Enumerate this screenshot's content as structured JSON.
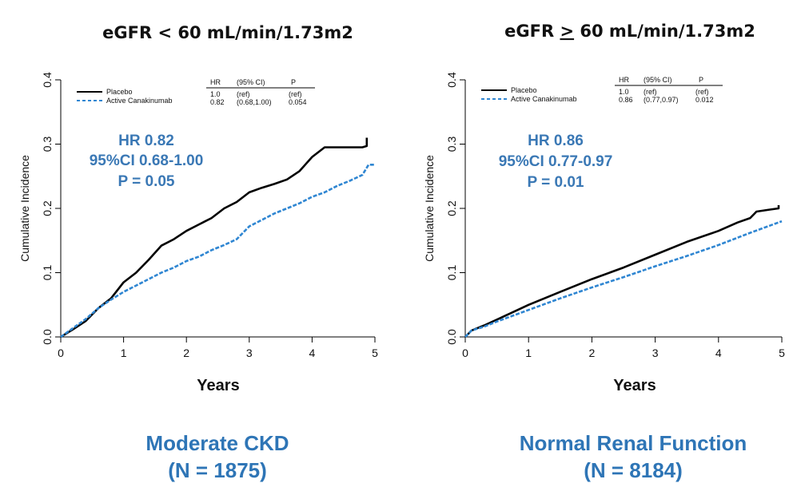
{
  "colors": {
    "placebo": "#000000",
    "active": "#2f86d2",
    "annotation": "#3a78b5",
    "caption": "#2e75b6"
  },
  "chart_data": [
    {
      "type": "line",
      "title_prefix": "eGFR ",
      "title_op": "<",
      "title_suffix": " 60 mL/min/1.73m2",
      "title_underline": false,
      "xlabel": "Years",
      "ylabel": "Cumulative Incidence",
      "xlim": [
        0,
        5
      ],
      "ylim": [
        0,
        0.4
      ],
      "xticks": [
        "0",
        "1",
        "2",
        "3",
        "4",
        "5"
      ],
      "yticks": [
        "0.0",
        "0.1",
        "0.2",
        "0.3",
        "0.4"
      ],
      "legend_position": "top-left",
      "series": [
        {
          "name": "Placebo",
          "style": "solid",
          "x": [
            0,
            0.2,
            0.4,
            0.6,
            0.8,
            1.0,
            1.2,
            1.4,
            1.6,
            1.8,
            2.0,
            2.2,
            2.4,
            2.6,
            2.8,
            3.0,
            3.2,
            3.4,
            3.6,
            3.8,
            4.0,
            4.2,
            4.5,
            4.8,
            4.87,
            4.87
          ],
          "y": [
            0,
            0.012,
            0.025,
            0.045,
            0.06,
            0.085,
            0.1,
            0.12,
            0.142,
            0.152,
            0.165,
            0.175,
            0.185,
            0.2,
            0.21,
            0.225,
            0.232,
            0.238,
            0.245,
            0.258,
            0.28,
            0.295,
            0.295,
            0.295,
            0.297,
            0.31
          ]
        },
        {
          "name": "Active Canakinumab",
          "style": "dashed",
          "x": [
            0,
            0.2,
            0.4,
            0.6,
            0.8,
            1.0,
            1.2,
            1.4,
            1.6,
            1.8,
            2.0,
            2.2,
            2.4,
            2.6,
            2.8,
            3.0,
            3.2,
            3.4,
            3.6,
            3.8,
            4.0,
            4.2,
            4.4,
            4.6,
            4.8,
            4.9,
            5.0
          ],
          "y": [
            0,
            0.014,
            0.028,
            0.045,
            0.058,
            0.07,
            0.08,
            0.09,
            0.1,
            0.108,
            0.118,
            0.125,
            0.135,
            0.143,
            0.152,
            0.172,
            0.182,
            0.192,
            0.2,
            0.208,
            0.218,
            0.225,
            0.235,
            0.243,
            0.252,
            0.268,
            0.268
          ]
        }
      ],
      "table": {
        "headers": [
          "HR",
          "(95% CI)",
          "P"
        ],
        "rows": [
          [
            "1.0",
            "(ref)",
            "(ref)"
          ],
          [
            "0.82",
            "(0.68,1.00)",
            "0.054"
          ]
        ]
      },
      "annotation": [
        "HR 0.82",
        "95%CI 0.68-1.00",
        "P = 0.05"
      ],
      "caption": [
        "Moderate CKD",
        "(N = 1875)"
      ]
    },
    {
      "type": "line",
      "title_prefix": "eGFR ",
      "title_op": ">",
      "title_suffix": " 60 mL/min/1.73m2",
      "title_underline": true,
      "xlabel": "Years",
      "ylabel": "Cumulative Incidence",
      "xlim": [
        0,
        5
      ],
      "ylim": [
        0,
        0.4
      ],
      "xticks": [
        "0",
        "1",
        "2",
        "3",
        "4",
        "5"
      ],
      "yticks": [
        "0.0",
        "0.1",
        "0.2",
        "0.3",
        "0.4"
      ],
      "legend_position": "top-left",
      "series": [
        {
          "name": "Placebo",
          "style": "solid",
          "x": [
            0,
            0.1,
            0.3,
            0.5,
            1.0,
            1.5,
            2.0,
            2.5,
            3.0,
            3.5,
            4.0,
            4.3,
            4.5,
            4.6,
            4.8,
            4.95,
            4.95
          ],
          "y": [
            0,
            0.01,
            0.018,
            0.027,
            0.05,
            0.07,
            0.09,
            0.108,
            0.128,
            0.148,
            0.165,
            0.178,
            0.185,
            0.195,
            0.198,
            0.2,
            0.205
          ]
        },
        {
          "name": "Active Canakinumab",
          "style": "dashed",
          "x": [
            0,
            0.1,
            0.3,
            0.5,
            1.0,
            1.5,
            2.0,
            2.5,
            3.0,
            3.5,
            4.0,
            4.5,
            5.0
          ],
          "y": [
            0,
            0.01,
            0.016,
            0.024,
            0.042,
            0.06,
            0.077,
            0.093,
            0.11,
            0.126,
            0.143,
            0.162,
            0.18
          ]
        }
      ],
      "table": {
        "headers": [
          "HR",
          "(95% CI)",
          "P"
        ],
        "rows": [
          [
            "1.0",
            "(ref)",
            "(ref)"
          ],
          [
            "0.86",
            "(0.77,0.97)",
            "0.012"
          ]
        ]
      },
      "annotation": [
        "HR 0.86",
        "95%CI 0.77-0.97",
        "P = 0.01"
      ],
      "caption": [
        "Normal Renal Function",
        "(N = 8184)"
      ]
    }
  ]
}
